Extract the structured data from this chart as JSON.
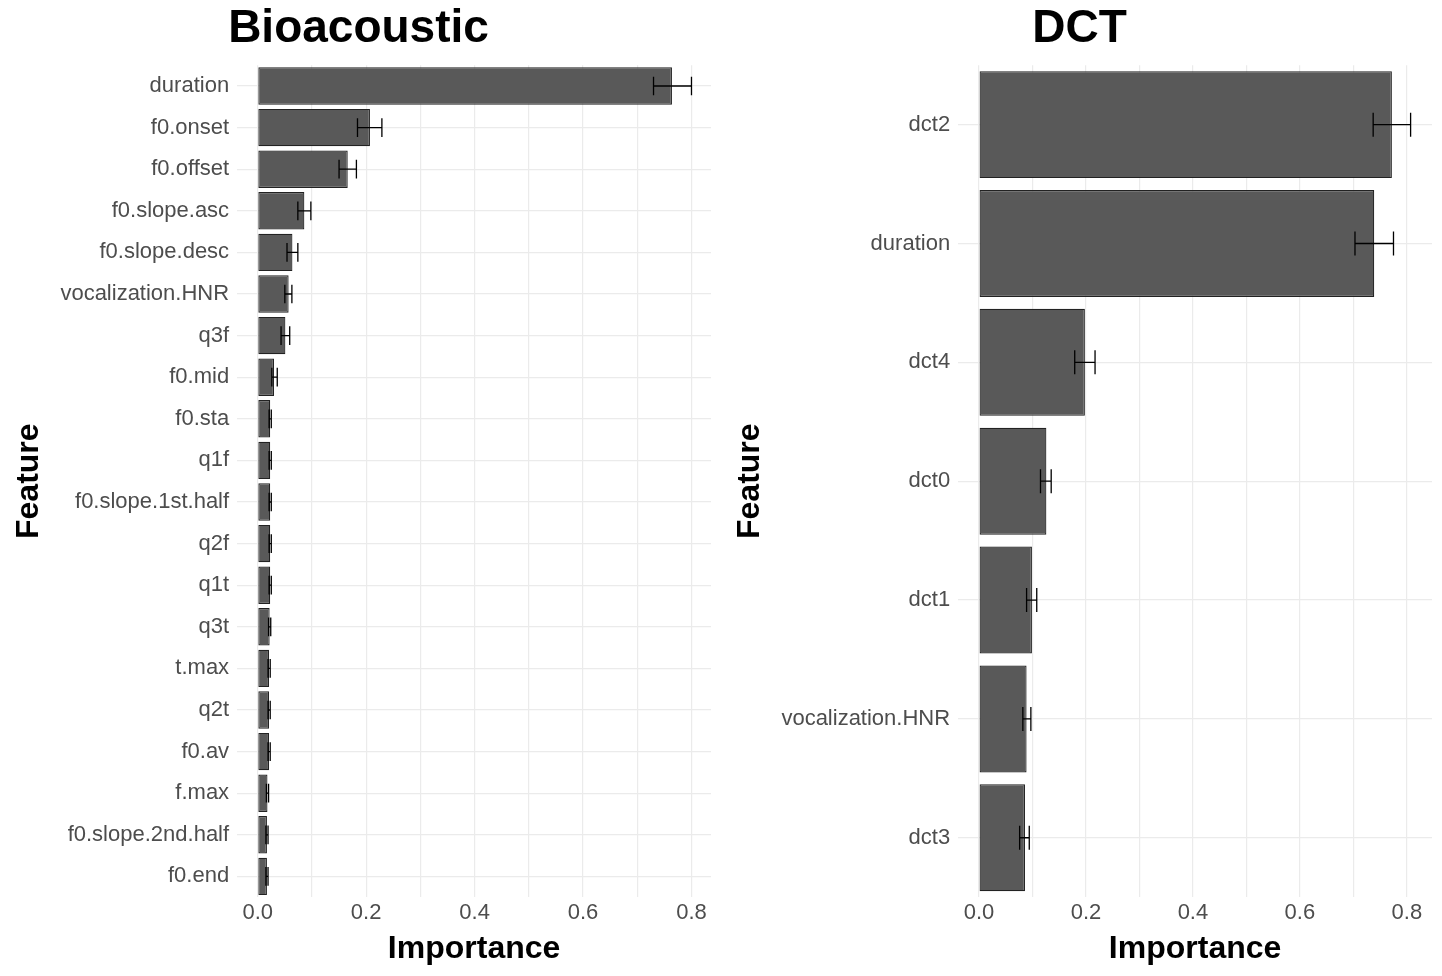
{
  "chart_data": [
    {
      "type": "bar",
      "orientation": "horizontal",
      "title": "Bioacoustic",
      "xlabel": "Importance",
      "ylabel": "Feature",
      "categories": [
        "duration",
        "f0.onset",
        "f0.offset",
        "f0.slope.asc",
        "f0.slope.desc",
        "vocalization.HNR",
        "q3f",
        "f0.mid",
        "f0.sta",
        "q1f",
        "f0.slope.1st.half",
        "q2f",
        "q1t",
        "q3t",
        "t.max",
        "q2t",
        "f0.av",
        "f.max",
        "f0.slope.2nd.half",
        "f0.end"
      ],
      "values": [
        0.764,
        0.207,
        0.166,
        0.086,
        0.064,
        0.057,
        0.051,
        0.03,
        0.023,
        0.023,
        0.023,
        0.023,
        0.023,
        0.022,
        0.021,
        0.021,
        0.021,
        0.018,
        0.017,
        0.017
      ],
      "errors": [
        [
          0.73,
          0.8
        ],
        [
          0.184,
          0.229
        ],
        [
          0.15,
          0.182
        ],
        [
          0.074,
          0.098
        ],
        [
          0.054,
          0.074
        ],
        [
          0.05,
          0.063
        ],
        [
          0.043,
          0.059
        ],
        [
          0.026,
          0.036
        ],
        [
          0.021,
          0.025
        ],
        [
          0.021,
          0.025
        ],
        [
          0.021,
          0.025
        ],
        [
          0.021,
          0.025
        ],
        [
          0.021,
          0.025
        ],
        [
          0.02,
          0.024
        ],
        [
          0.019,
          0.023
        ],
        [
          0.019,
          0.023
        ],
        [
          0.019,
          0.023
        ],
        [
          0.016,
          0.02
        ],
        [
          0.015,
          0.019
        ],
        [
          0.015,
          0.019
        ]
      ],
      "color": "#595959",
      "xlim": [
        -0.038,
        0.836
      ],
      "xticks": [
        {
          "value": 0,
          "label": "0.0"
        },
        {
          "value": 0.1,
          "label": null
        },
        0.2,
        {
          "value": 0.3,
          "label": null
        },
        0.4,
        {
          "value": 0.5,
          "label": null
        },
        0.6,
        {
          "value": 0.7,
          "label": null
        },
        0.8
      ],
      "grid": true,
      "legend": false
    },
    {
      "type": "bar",
      "orientation": "horizontal",
      "title": "DCT",
      "xlabel": "Importance",
      "ylabel": "Feature",
      "categories": [
        "dct2",
        "duration",
        "dct4",
        "dct0",
        "dct1",
        "vocalization.HNR",
        "dct3"
      ],
      "values": [
        0.772,
        0.739,
        0.198,
        0.126,
        0.099,
        0.089,
        0.086
      ],
      "errors": [
        [
          0.737,
          0.807
        ],
        [
          0.703,
          0.775
        ],
        [
          0.179,
          0.217
        ],
        [
          0.115,
          0.135
        ],
        [
          0.089,
          0.108
        ],
        [
          0.082,
          0.097
        ],
        [
          0.076,
          0.094
        ]
      ],
      "color": "#595959",
      "xlim": [
        -0.039,
        0.847
      ],
      "xticks": [
        {
          "value": 0,
          "label": "0.0"
        },
        {
          "value": 0.1,
          "label": null
        },
        0.2,
        {
          "value": 0.3,
          "label": null
        },
        0.4,
        {
          "value": 0.5,
          "label": null
        },
        0.6,
        {
          "value": 0.7,
          "label": null
        },
        0.8
      ],
      "grid": true,
      "legend": false
    }
  ]
}
